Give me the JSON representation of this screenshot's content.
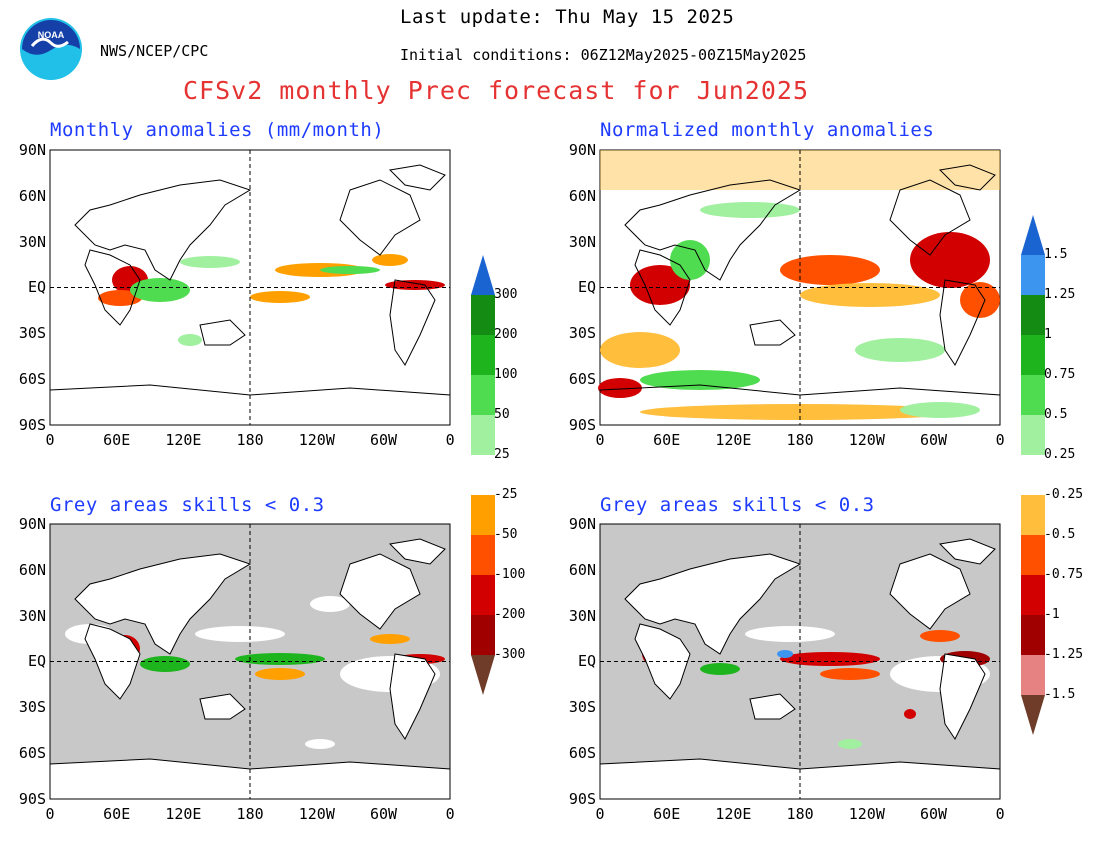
{
  "header": {
    "agency": "NWS/NCEP/CPC",
    "last_update": "Last update: Thu May 15 2025",
    "initial_conditions": "Initial conditions: 06Z12May2025-00Z15May2025",
    "title": "CFSv2 monthly Prec forecast for Jun2025",
    "logo_text": "NOAA"
  },
  "panels": {
    "anom": {
      "title": "Monthly anomalies (mm/month)"
    },
    "norm": {
      "title": "Normalized monthly anomalies"
    },
    "skill_anom": {
      "title": "Grey areas skills < 0.3"
    },
    "skill_norm": {
      "title": "Grey areas skills < 0.3"
    }
  },
  "axes": {
    "lat_labels": [
      "90N",
      "60N",
      "30N",
      "EQ",
      "30S",
      "60S",
      "90S"
    ],
    "lon_labels": [
      "0",
      "60E",
      "120E",
      "180",
      "120W",
      "60W",
      "0"
    ]
  },
  "colorbar_mm": {
    "labels": [
      "300",
      "200",
      "100",
      "50",
      "25",
      "-25",
      "-50",
      "-100",
      "-200",
      "-300"
    ],
    "colors": [
      "#1a64d2",
      "#148c14",
      "#1eb41e",
      "#50dc50",
      "#a0f0a0",
      "#ffffff",
      "#ffa000",
      "#ff5000",
      "#d20000",
      "#a00000",
      "#6e3c28"
    ]
  },
  "colorbar_norm": {
    "labels": [
      "1.5",
      "1.25",
      "1",
      "0.75",
      "0.5",
      "0.25",
      "-0.25",
      "-0.5",
      "-0.75",
      "-1",
      "-1.25",
      "-1.5"
    ],
    "colors": [
      "#1a64d2",
      "#3c96f0",
      "#148c14",
      "#1eb41e",
      "#50dc50",
      "#a0f0a0",
      "#ffffff",
      "#ffbe3c",
      "#ff5000",
      "#d20000",
      "#a00000",
      "#e68282",
      "#6e3c28"
    ]
  }
}
